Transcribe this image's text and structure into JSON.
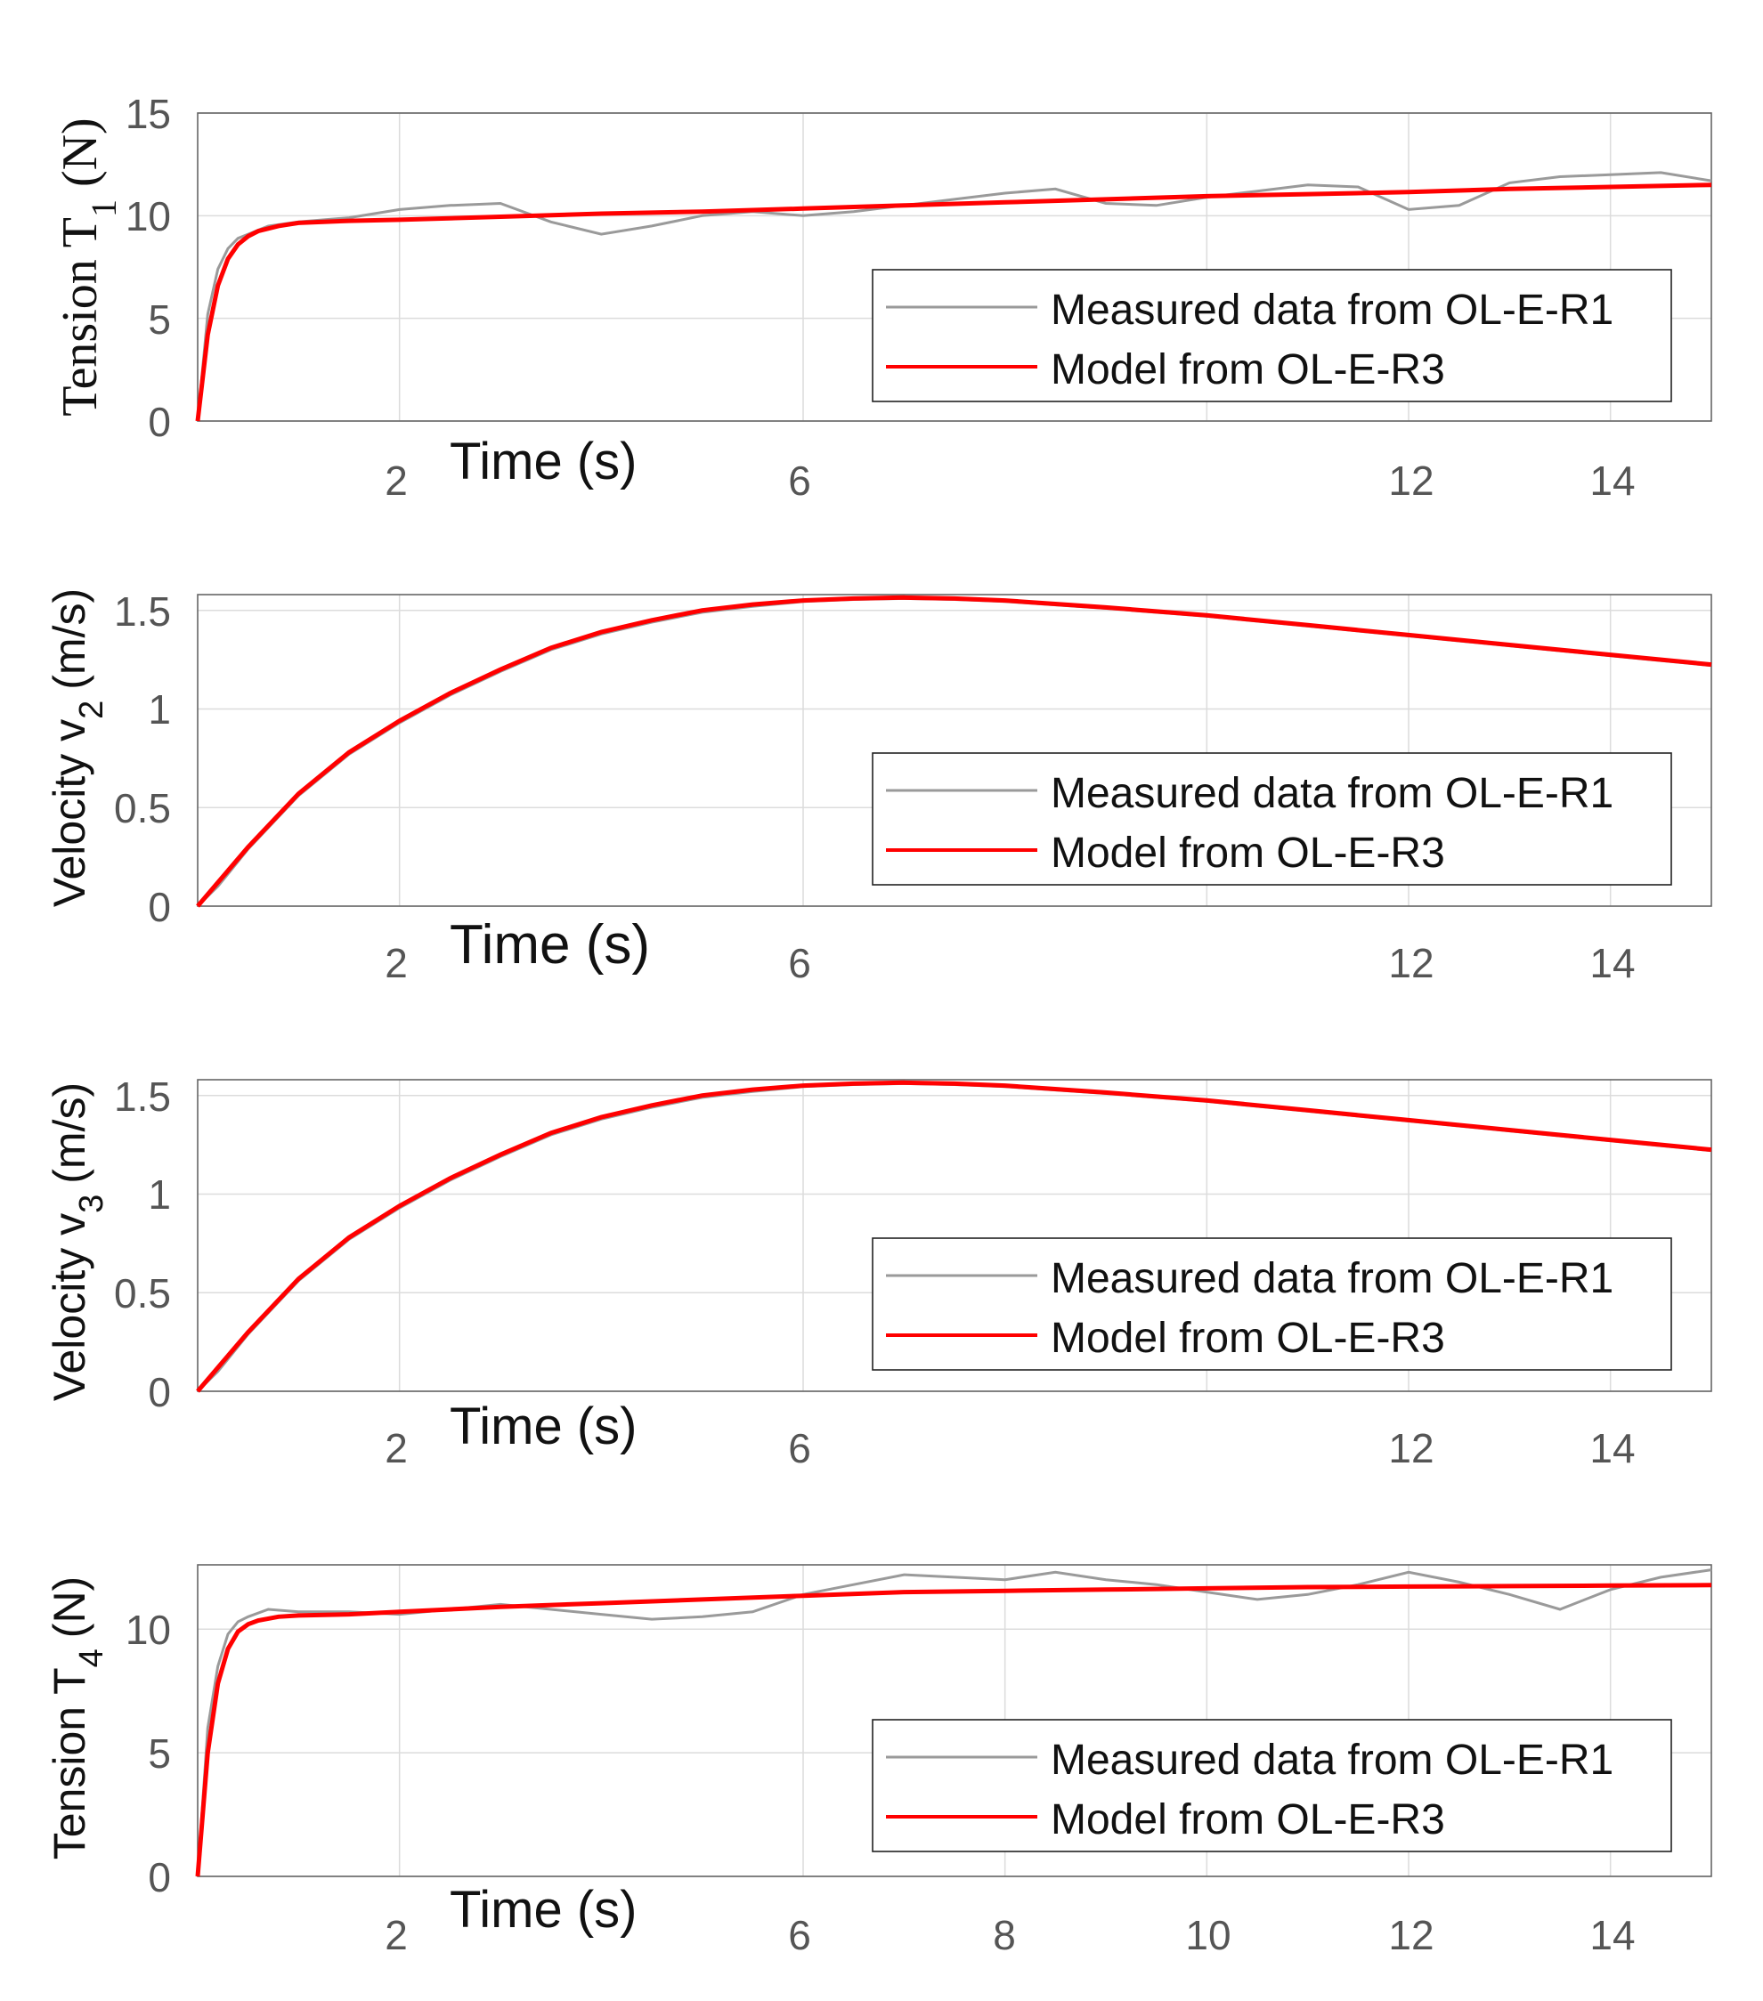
{
  "colors": {
    "measured": "#9a9a9a",
    "model": "#ff0000",
    "grid": "#dcdcdc",
    "axis": "#666666"
  },
  "chart_data": [
    {
      "type": "line",
      "ylabel": "Tension T",
      "ylabel_subscript": "1",
      "ylabel_unit": "(N)",
      "xlabel": "Time (s)",
      "xlim": [
        0,
        15
      ],
      "ylim": [
        0,
        15
      ],
      "xticks": [
        2,
        6,
        12,
        14
      ],
      "xgrid": [
        2,
        6,
        10,
        12,
        14
      ],
      "yticks": [
        0,
        5,
        10,
        15
      ],
      "ytick_labels": [
        "0",
        "5",
        "10",
        "15"
      ],
      "legend": [
        "Measured data from OL-E-R1",
        "Model from OL-E-R3"
      ],
      "legend_position": "lower-right",
      "series": [
        {
          "name": "Measured data from OL-E-R1",
          "x": [
            0,
            0.1,
            0.2,
            0.3,
            0.4,
            0.5,
            0.7,
            1.0,
            1.5,
            2.0,
            2.5,
            3.0,
            3.5,
            4.0,
            4.5,
            5.0,
            5.5,
            6.0,
            6.5,
            7.0,
            7.5,
            8.0,
            8.5,
            9.0,
            9.5,
            10.0,
            10.5,
            11.0,
            11.5,
            12.0,
            12.5,
            13.0,
            13.5,
            14.0,
            14.5,
            15.0
          ],
          "values": [
            0,
            5.2,
            7.4,
            8.4,
            8.9,
            9.1,
            9.5,
            9.7,
            9.9,
            10.3,
            10.5,
            10.6,
            9.7,
            9.1,
            9.5,
            10.0,
            10.2,
            10.0,
            10.2,
            10.5,
            10.8,
            11.1,
            11.3,
            10.6,
            10.5,
            10.9,
            11.2,
            11.5,
            11.4,
            10.3,
            10.5,
            11.6,
            11.9,
            12.0,
            12.1,
            11.7
          ]
        },
        {
          "name": "Model from OL-E-R3",
          "x": [
            0,
            0.1,
            0.2,
            0.3,
            0.4,
            0.5,
            0.6,
            0.8,
            1.0,
            1.5,
            2.0,
            3.0,
            4.0,
            5.0,
            6.0,
            7.0,
            8.0,
            9.0,
            10.0,
            11.0,
            12.0,
            13.0,
            14.0,
            15.0
          ],
          "values": [
            0,
            4.2,
            6.6,
            7.9,
            8.6,
            9.0,
            9.25,
            9.5,
            9.65,
            9.75,
            9.8,
            9.95,
            10.1,
            10.2,
            10.35,
            10.5,
            10.65,
            10.8,
            10.95,
            11.05,
            11.15,
            11.3,
            11.4,
            11.5
          ]
        }
      ]
    },
    {
      "type": "line",
      "ylabel": "Velocity v",
      "ylabel_subscript": "2",
      "ylabel_unit": "(m/s)",
      "xlabel": "Time (s)",
      "xlim": [
        0,
        15
      ],
      "ylim": [
        0,
        1.58
      ],
      "xticks": [
        2,
        6,
        12,
        14
      ],
      "xgrid": [
        2,
        6,
        10,
        12,
        14
      ],
      "yticks": [
        0,
        0.5,
        1,
        1.5
      ],
      "ytick_labels": [
        "0",
        "0.5",
        "1",
        "1.5"
      ],
      "legend": [
        "Measured data from OL-E-R1",
        "Model from OL-E-R3"
      ],
      "legend_position": "lower-right",
      "series": [
        {
          "name": "Measured data from OL-E-R1",
          "x": [
            0,
            0.2,
            0.5,
            1.0,
            1.5,
            2.0,
            2.5,
            3.0,
            3.5,
            4.0,
            4.5,
            5.0,
            5.5,
            6.0,
            6.5,
            7.0,
            7.5,
            8.0,
            9.0,
            10.0,
            11.0,
            12.0,
            13.0,
            14.0,
            15.0
          ],
          "values": [
            0,
            0.1,
            0.29,
            0.56,
            0.77,
            0.93,
            1.07,
            1.19,
            1.3,
            1.38,
            1.44,
            1.49,
            1.52,
            1.545,
            1.555,
            1.56,
            1.555,
            1.545,
            1.51,
            1.47,
            1.42,
            1.37,
            1.32,
            1.27,
            1.22
          ]
        },
        {
          "name": "Model from OL-E-R3",
          "x": [
            0,
            0.2,
            0.5,
            1.0,
            1.5,
            2.0,
            2.5,
            3.0,
            3.5,
            4.0,
            4.5,
            5.0,
            5.5,
            6.0,
            6.5,
            7.0,
            7.5,
            8.0,
            9.0,
            10.0,
            11.0,
            12.0,
            13.0,
            14.0,
            15.0
          ],
          "values": [
            0,
            0.12,
            0.3,
            0.57,
            0.78,
            0.94,
            1.08,
            1.2,
            1.31,
            1.39,
            1.45,
            1.5,
            1.53,
            1.55,
            1.56,
            1.565,
            1.56,
            1.55,
            1.515,
            1.475,
            1.425,
            1.375,
            1.325,
            1.275,
            1.225
          ]
        }
      ]
    },
    {
      "type": "line",
      "ylabel": "Velocity v",
      "ylabel_subscript": "3",
      "ylabel_unit": "(m/s)",
      "xlabel": "Time (s)",
      "xlim": [
        0,
        15
      ],
      "ylim": [
        0,
        1.58
      ],
      "xticks": [
        2,
        6,
        12,
        14
      ],
      "xgrid": [
        2,
        6,
        10,
        12,
        14
      ],
      "yticks": [
        0,
        0.5,
        1,
        1.5
      ],
      "ytick_labels": [
        "0",
        "0.5",
        "1",
        "1.5"
      ],
      "legend": [
        "Measured data from OL-E-R1",
        "Model from OL-E-R3"
      ],
      "legend_position": "lower-right",
      "series": [
        {
          "name": "Measured data from OL-E-R1",
          "x": [
            0,
            0.2,
            0.5,
            1.0,
            1.5,
            2.0,
            2.5,
            3.0,
            3.5,
            4.0,
            4.5,
            5.0,
            5.5,
            6.0,
            6.5,
            7.0,
            7.5,
            8.0,
            9.0,
            10.0,
            11.0,
            12.0,
            13.0,
            14.0,
            15.0
          ],
          "values": [
            0,
            0.1,
            0.29,
            0.56,
            0.77,
            0.93,
            1.07,
            1.19,
            1.3,
            1.38,
            1.44,
            1.49,
            1.52,
            1.545,
            1.555,
            1.56,
            1.555,
            1.545,
            1.51,
            1.47,
            1.42,
            1.37,
            1.32,
            1.27,
            1.22
          ]
        },
        {
          "name": "Model from OL-E-R3",
          "x": [
            0,
            0.2,
            0.5,
            1.0,
            1.5,
            2.0,
            2.5,
            3.0,
            3.5,
            4.0,
            4.5,
            5.0,
            5.5,
            6.0,
            6.5,
            7.0,
            7.5,
            8.0,
            9.0,
            10.0,
            11.0,
            12.0,
            13.0,
            14.0,
            15.0
          ],
          "values": [
            0,
            0.12,
            0.3,
            0.57,
            0.78,
            0.94,
            1.08,
            1.2,
            1.31,
            1.39,
            1.45,
            1.5,
            1.53,
            1.55,
            1.56,
            1.565,
            1.56,
            1.55,
            1.515,
            1.475,
            1.425,
            1.375,
            1.325,
            1.275,
            1.225
          ]
        }
      ]
    },
    {
      "type": "line",
      "ylabel": "Tension T",
      "ylabel_subscript": "4",
      "ylabel_unit": "(N)",
      "xlabel": "Time (s)",
      "xlim": [
        0,
        15
      ],
      "ylim": [
        0,
        12.6
      ],
      "xticks": [
        2,
        6,
        8,
        10,
        12,
        14
      ],
      "xgrid": [
        2,
        6,
        8,
        10,
        12,
        14
      ],
      "yticks": [
        0,
        5,
        10
      ],
      "ytick_labels": [
        "0",
        "5",
        "10"
      ],
      "legend": [
        "Measured data from OL-E-R1",
        "Model from OL-E-R3"
      ],
      "legend_position": "lower-right",
      "series": [
        {
          "name": "Measured data from OL-E-R1",
          "x": [
            0,
            0.1,
            0.2,
            0.3,
            0.4,
            0.5,
            0.7,
            1.0,
            1.5,
            2.0,
            2.5,
            3.0,
            3.5,
            4.0,
            4.5,
            5.0,
            5.5,
            6.0,
            6.5,
            7.0,
            7.5,
            8.0,
            8.5,
            9.0,
            9.5,
            10.0,
            10.5,
            11.0,
            11.5,
            12.0,
            12.5,
            13.0,
            13.5,
            14.0,
            14.5,
            15.0
          ],
          "values": [
            0,
            6.0,
            8.5,
            9.8,
            10.3,
            10.5,
            10.8,
            10.7,
            10.7,
            10.6,
            10.8,
            11.0,
            10.8,
            10.6,
            10.4,
            10.5,
            10.7,
            11.4,
            11.8,
            12.2,
            12.1,
            12.0,
            12.3,
            12.0,
            11.8,
            11.5,
            11.2,
            11.4,
            11.8,
            12.3,
            11.9,
            11.4,
            10.8,
            11.6,
            12.1,
            12.4
          ]
        },
        {
          "name": "Model from OL-E-R3",
          "x": [
            0,
            0.1,
            0.2,
            0.3,
            0.4,
            0.5,
            0.6,
            0.8,
            1.0,
            1.5,
            2.0,
            3.0,
            4.0,
            5.0,
            6.0,
            7.0,
            8.0,
            9.0,
            10.0,
            11.0,
            12.0,
            13.0,
            14.0,
            15.0
          ],
          "values": [
            0,
            5.0,
            7.8,
            9.2,
            9.9,
            10.2,
            10.35,
            10.5,
            10.55,
            10.6,
            10.7,
            10.9,
            11.05,
            11.2,
            11.35,
            11.5,
            11.55,
            11.6,
            11.65,
            11.7,
            11.72,
            11.74,
            11.76,
            11.78
          ]
        }
      ]
    }
  ]
}
